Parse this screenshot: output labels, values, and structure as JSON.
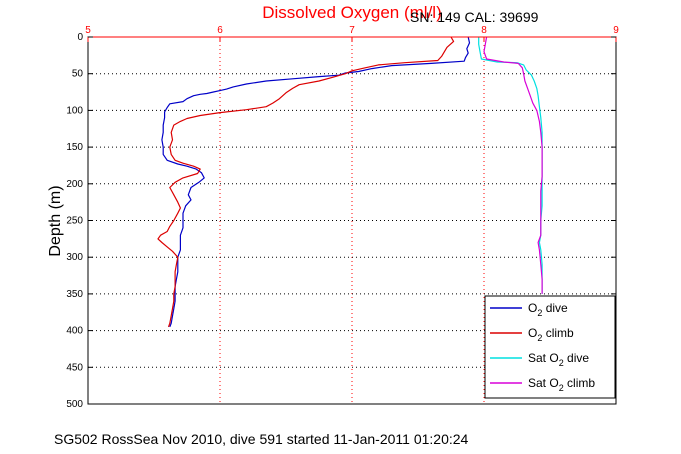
{
  "chart_data": {
    "type": "line",
    "title": "Dissolved Oxygen (ml/l)",
    "subtitle": "SN: 149  CAL: 39699",
    "ylabel": "Depth (m)",
    "footer": "SG502 RossSea Nov 2010, dive 591 started 11-Jan-2011 01:20:24",
    "xlim": [
      5,
      9
    ],
    "ylim": [
      0,
      500
    ],
    "y_inverted": true,
    "x_axis_position": "top",
    "xticks": [
      5,
      6,
      7,
      8,
      9
    ],
    "yticks": [
      0,
      50,
      100,
      150,
      200,
      250,
      300,
      350,
      400,
      450,
      500
    ],
    "grid": true,
    "legend_position": "bottom-right",
    "colors": {
      "title": "#ff0000",
      "top_axis": "#ff0000",
      "grid": "#000000"
    },
    "series": [
      {
        "name_main": "O",
        "name_sub": "2",
        "name_rest": " dive",
        "color": "#0000c8",
        "style": "solid",
        "points": [
          [
            7.88,
            0
          ],
          [
            7.89,
            8
          ],
          [
            7.87,
            16
          ],
          [
            7.88,
            22
          ],
          [
            7.86,
            28
          ],
          [
            7.85,
            33
          ],
          [
            7.6,
            36
          ],
          [
            7.3,
            39
          ],
          [
            7.15,
            43
          ],
          [
            7.05,
            47
          ],
          [
            6.95,
            49
          ],
          [
            6.9,
            52
          ],
          [
            6.75,
            54
          ],
          [
            6.55,
            57
          ],
          [
            6.35,
            60
          ],
          [
            6.2,
            64
          ],
          [
            6.1,
            68
          ],
          [
            6.05,
            71
          ],
          [
            6.0,
            73
          ],
          [
            5.95,
            75
          ],
          [
            5.9,
            77
          ],
          [
            5.85,
            78
          ],
          [
            5.8,
            80
          ],
          [
            5.75,
            84
          ],
          [
            5.72,
            88
          ],
          [
            5.62,
            91
          ],
          [
            5.6,
            96
          ],
          [
            5.58,
            102
          ],
          [
            5.58,
            110
          ],
          [
            5.57,
            120
          ],
          [
            5.57,
            130
          ],
          [
            5.56,
            140
          ],
          [
            5.57,
            150
          ],
          [
            5.57,
            160
          ],
          [
            5.6,
            168
          ],
          [
            5.68,
            173
          ],
          [
            5.75,
            176
          ],
          [
            5.82,
            180
          ],
          [
            5.86,
            185
          ],
          [
            5.88,
            192
          ],
          [
            5.84,
            198
          ],
          [
            5.78,
            205
          ],
          [
            5.76,
            215
          ],
          [
            5.78,
            222
          ],
          [
            5.74,
            230
          ],
          [
            5.72,
            240
          ],
          [
            5.72,
            250
          ],
          [
            5.72,
            260
          ],
          [
            5.7,
            270
          ],
          [
            5.7,
            280
          ],
          [
            5.7,
            290
          ],
          [
            5.68,
            300
          ],
          [
            5.68,
            310
          ],
          [
            5.68,
            320
          ],
          [
            5.67,
            330
          ],
          [
            5.66,
            340
          ],
          [
            5.66,
            350
          ],
          [
            5.66,
            360
          ],
          [
            5.65,
            370
          ],
          [
            5.64,
            380
          ],
          [
            5.63,
            390
          ],
          [
            5.62,
            395
          ]
        ]
      },
      {
        "name_main": "O",
        "name_sub": "2",
        "name_rest": " climb",
        "color": "#dc0000",
        "style": "solid",
        "points": [
          [
            7.75,
            0
          ],
          [
            7.77,
            6
          ],
          [
            7.72,
            14
          ],
          [
            7.7,
            20
          ],
          [
            7.68,
            26
          ],
          [
            7.65,
            32
          ],
          [
            7.4,
            35
          ],
          [
            7.2,
            38
          ],
          [
            7.1,
            42
          ],
          [
            7.0,
            46
          ],
          [
            6.95,
            50
          ],
          [
            6.85,
            55
          ],
          [
            6.75,
            60
          ],
          [
            6.6,
            65
          ],
          [
            6.55,
            70
          ],
          [
            6.5,
            76
          ],
          [
            6.45,
            84
          ],
          [
            6.4,
            90
          ],
          [
            6.35,
            95
          ],
          [
            6.2,
            99
          ],
          [
            6.0,
            103
          ],
          [
            5.85,
            107
          ],
          [
            5.75,
            111
          ],
          [
            5.7,
            115
          ],
          [
            5.65,
            120
          ],
          [
            5.63,
            130
          ],
          [
            5.64,
            140
          ],
          [
            5.62,
            150
          ],
          [
            5.63,
            160
          ],
          [
            5.66,
            168
          ],
          [
            5.72,
            172
          ],
          [
            5.8,
            176
          ],
          [
            5.85,
            180
          ],
          [
            5.83,
            186
          ],
          [
            5.72,
            192
          ],
          [
            5.66,
            198
          ],
          [
            5.62,
            205
          ],
          [
            5.65,
            215
          ],
          [
            5.68,
            225
          ],
          [
            5.7,
            233
          ],
          [
            5.68,
            240
          ],
          [
            5.65,
            250
          ],
          [
            5.62,
            258
          ],
          [
            5.6,
            265
          ],
          [
            5.55,
            270
          ],
          [
            5.53,
            275
          ],
          [
            5.56,
            280
          ],
          [
            5.6,
            286
          ],
          [
            5.64,
            292
          ],
          [
            5.68,
            300
          ],
          [
            5.67,
            310
          ],
          [
            5.66,
            320
          ],
          [
            5.66,
            330
          ],
          [
            5.66,
            340
          ],
          [
            5.65,
            350
          ],
          [
            5.65,
            360
          ],
          [
            5.64,
            370
          ],
          [
            5.63,
            380
          ],
          [
            5.62,
            390
          ],
          [
            5.61,
            395
          ]
        ]
      },
      {
        "name_main": "Sat O",
        "name_sub": "2",
        "name_rest": " dive",
        "color": "#00e0e0",
        "style": "solid",
        "points": [
          [
            7.96,
            0
          ],
          [
            7.96,
            10
          ],
          [
            7.97,
            20
          ],
          [
            7.98,
            30
          ],
          [
            8.1,
            34
          ],
          [
            8.25,
            35
          ],
          [
            8.3,
            38
          ],
          [
            8.32,
            45
          ],
          [
            8.36,
            52
          ],
          [
            8.38,
            60
          ],
          [
            8.4,
            70
          ],
          [
            8.41,
            80
          ],
          [
            8.42,
            95
          ],
          [
            8.43,
            110
          ],
          [
            8.44,
            130
          ],
          [
            8.44,
            150
          ],
          [
            8.44,
            170
          ],
          [
            8.44,
            190
          ],
          [
            8.44,
            210
          ],
          [
            8.44,
            230
          ],
          [
            8.43,
            250
          ],
          [
            8.43,
            270
          ],
          [
            8.42,
            280
          ],
          [
            8.43,
            290
          ],
          [
            8.44,
            310
          ],
          [
            8.44,
            330
          ],
          [
            8.44,
            350
          ]
        ]
      },
      {
        "name_main": "Sat O",
        "name_sub": "2",
        "name_rest": " climb",
        "color": "#d800d8",
        "style": "solid",
        "points": [
          [
            8.02,
            0
          ],
          [
            8.01,
            10
          ],
          [
            8.0,
            20
          ],
          [
            8.02,
            30
          ],
          [
            8.15,
            34
          ],
          [
            8.26,
            36
          ],
          [
            8.29,
            42
          ],
          [
            8.3,
            50
          ],
          [
            8.31,
            60
          ],
          [
            8.33,
            70
          ],
          [
            8.35,
            80
          ],
          [
            8.37,
            90
          ],
          [
            8.4,
            100
          ],
          [
            8.42,
            115
          ],
          [
            8.43,
            130
          ],
          [
            8.44,
            150
          ],
          [
            8.44,
            170
          ],
          [
            8.44,
            190
          ],
          [
            8.43,
            210
          ],
          [
            8.43,
            230
          ],
          [
            8.43,
            250
          ],
          [
            8.43,
            270
          ],
          [
            8.41,
            280
          ],
          [
            8.42,
            290
          ],
          [
            8.43,
            310
          ],
          [
            8.44,
            330
          ],
          [
            8.44,
            350
          ]
        ]
      }
    ]
  }
}
